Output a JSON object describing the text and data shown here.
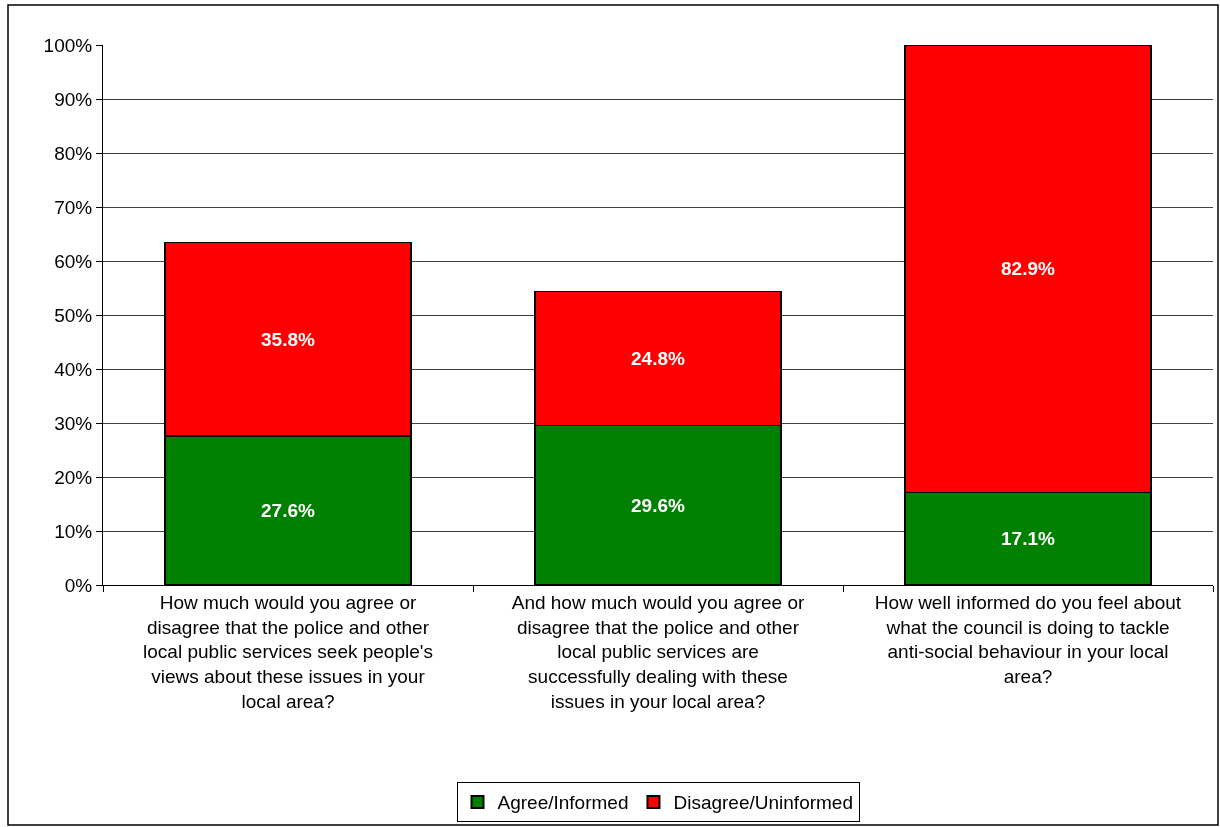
{
  "chart_data": {
    "type": "bar",
    "stacked": true,
    "categories": [
      "How much would you agree or disagree that the police and other local public services seek people's views about these issues in your local area?",
      "And how much would you agree or disagree that the police and other local public services are successfully dealing with these issues in your local area?",
      "How well informed do you feel about what the council is doing to tackle anti-social behaviour in your local area?"
    ],
    "series": [
      {
        "name": "Agree/Informed",
        "color": "#008000",
        "values": [
          27.6,
          29.6,
          17.1
        ],
        "value_labels": [
          "27.6%",
          "29.6%",
          "17.1%"
        ]
      },
      {
        "name": "Disagree/Uninformed",
        "color": "#ff0000",
        "values": [
          35.8,
          24.8,
          82.9
        ],
        "value_labels": [
          "35.8%",
          "24.8%",
          "82.9%"
        ]
      }
    ],
    "ylim": [
      0,
      100
    ],
    "yticks": [
      {
        "value": 0,
        "label": "0%"
      },
      {
        "value": 10,
        "label": "10%"
      },
      {
        "value": 20,
        "label": "20%"
      },
      {
        "value": 30,
        "label": "30%"
      },
      {
        "value": 40,
        "label": "40%"
      },
      {
        "value": 50,
        "label": "50%"
      },
      {
        "value": 60,
        "label": "60%"
      },
      {
        "value": 70,
        "label": "70%"
      },
      {
        "value": 80,
        "label": "80%"
      },
      {
        "value": 90,
        "label": "90%"
      },
      {
        "value": 100,
        "label": "100%"
      }
    ],
    "grid": "y",
    "legend": "bottom"
  }
}
